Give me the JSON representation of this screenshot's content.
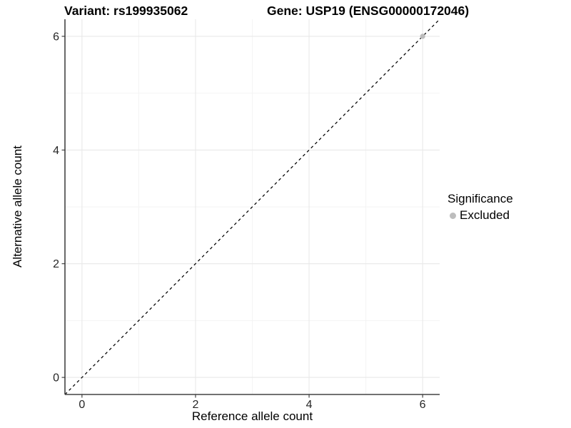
{
  "chart_data": {
    "type": "scatter",
    "title_left": "Variant: rs199935062",
    "title_right": "Gene: USP19 (ENSG00000172046)",
    "xlabel": "Reference allele count",
    "ylabel": "Alternative allele count",
    "xlim": [
      -0.3,
      6.3
    ],
    "ylim": [
      -0.3,
      6.3
    ],
    "x_ticks": [
      0,
      2,
      4,
      6
    ],
    "y_ticks": [
      0,
      2,
      4,
      6
    ],
    "x_minor_ticks": [
      1,
      3,
      5
    ],
    "y_minor_ticks": [
      1,
      3,
      5
    ],
    "grid": "major+minor",
    "points": [
      {
        "x": 6,
        "y": 6,
        "series": "Excluded",
        "color": "#bdbdbd"
      }
    ],
    "reference_line": {
      "type": "identity",
      "slope": 1,
      "intercept": 0,
      "style": "dashed",
      "color": "#000000"
    },
    "legend": {
      "position": "right",
      "title": "Significance",
      "items": [
        {
          "label": "Excluded",
          "marker": "circle",
          "color": "#bdbdbd"
        }
      ]
    }
  },
  "colors": {
    "background": "#ffffff",
    "panel_background": "#ffffff",
    "axis_line": "#444444",
    "tick_mark": "#333333",
    "grid_major": "#e8e8e8",
    "grid_minor": "#f3f3f3",
    "tick_label": "#262626",
    "text": "#000000"
  }
}
